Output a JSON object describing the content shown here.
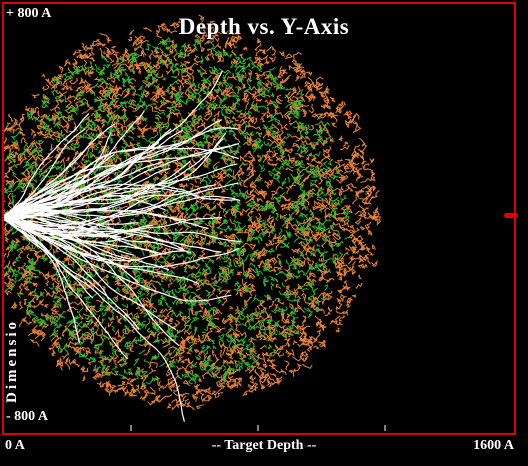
{
  "chart_data": {
    "type": "scatter",
    "title": "Depth vs. Y-Axis",
    "xlabel": "-- Target Depth --",
    "ylabel": "Dimensio",
    "x_tick_labels": [
      "0 A",
      "1600 A"
    ],
    "y_tick_labels": [
      "+ 800 A",
      "- 800 A"
    ],
    "xlim": [
      0,
      1600
    ],
    "ylim": [
      -800,
      800
    ],
    "grid": false,
    "legend": "none",
    "description_of_marks": "ion collision cascade: dense cloud of recoil tracks centered near 600 A depth",
    "series": [
      {
        "color": "#e8823a",
        "cloud_center": [
          560,
          10
        ],
        "cloud_radius": [
          620,
          720
        ]
      },
      {
        "color": "#2fb82f",
        "cloud_center": [
          520,
          10
        ],
        "cloud_radius": [
          560,
          650
        ]
      },
      {
        "color": "#ffffff",
        "tracks_origin": [
          0,
          0
        ],
        "tracks_extent": [
          750,
          300
        ]
      }
    ]
  },
  "colors": {
    "background": "#000000",
    "frame": "#e00000",
    "marker": "#e00000"
  }
}
